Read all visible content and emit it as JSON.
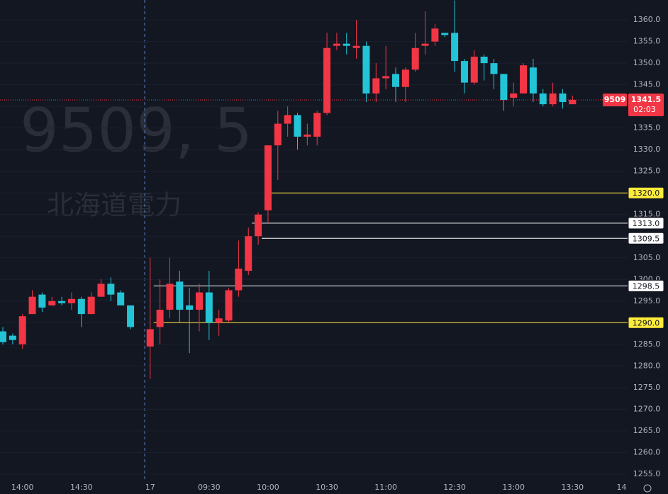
{
  "chart_data": {
    "type": "candlestick",
    "watermark": "9509, 5",
    "watermark_name": "北海道電力",
    "categories": [
      null,
      null,
      "14:00",
      null,
      null,
      null,
      null,
      null,
      "14:30",
      null,
      null,
      null,
      null,
      null,
      null,
      "17",
      null,
      null,
      null,
      null,
      null,
      "09:30",
      null,
      null,
      null,
      null,
      null,
      "10:00",
      null,
      null,
      null,
      null,
      null,
      "10:30",
      null,
      null,
      null,
      null,
      null,
      "11:00",
      null,
      null,
      null,
      null,
      null,
      null,
      "12:30",
      null,
      null,
      null,
      null,
      null,
      "13:00",
      null,
      null,
      null,
      null,
      null,
      "13:30",
      null,
      null,
      null,
      null,
      "14"
    ],
    "open": [
      1288,
      1287,
      1285,
      1292,
      1296.5,
      1294,
      1295,
      1294.5,
      1295.5,
      1292,
      1296,
      1299,
      1297,
      1294,
      null,
      1284.5,
      1289,
      1293,
      1299.5,
      1294,
      1293,
      1297,
      1290,
      1290.5,
      1297.5,
      1302,
      1310,
      1316,
      1331,
      1336,
      1338,
      1333,
      1333,
      1338.5,
      1354,
      1354.5,
      1353.5,
      1354,
      1343,
      1346.5,
      1347.5,
      1344.5,
      1348.5,
      1354,
      1355,
      1357,
      1357,
      1350.5,
      1345.5,
      1351.5,
      1350,
      1347.5,
      1342,
      1343,
      1349,
      1343,
      1340.5,
      1343,
      1340.5,
      null,
      null,
      null,
      null,
      null
    ],
    "high": [
      1289,
      1287.5,
      1292,
      1297.5,
      1297,
      1296,
      1296,
      1297,
      1296,
      1297,
      1300,
      1300.5,
      1297.5,
      1294,
      null,
      1305,
      1300,
      1305,
      1302,
      1298,
      1299,
      1302,
      1293,
      1298,
      1309,
      1312,
      1315.5,
      1331,
      1339,
      1340,
      1338.5,
      1336,
      1339,
      1357,
      1357,
      1357,
      1360,
      1355,
      1350,
      1354,
      1349,
      1349,
      1357,
      1362,
      1359,
      1357,
      1364.5,
      1351,
      1353,
      1352,
      1351,
      1347.5,
      1345.5,
      1350,
      1351,
      1344,
      1345.5,
      1344,
      1342.5,
      null,
      null,
      null,
      null,
      null
    ],
    "low": [
      1285,
      1285,
      1284,
      1292,
      1292.5,
      1294,
      1294,
      1293,
      1289,
      1292,
      1296,
      1295,
      1294,
      1288.5,
      null,
      1277,
      1285,
      1291,
      1290,
      1283,
      1288,
      1286,
      1287,
      1290,
      1296,
      1301,
      1308,
      1313,
      1323,
      1333,
      1330,
      1331,
      1331,
      1338,
      1353,
      1352,
      1351,
      1341,
      1341,
      1344,
      1341,
      1341,
      1348,
      1352,
      1354,
      1356,
      1348,
      1343,
      1345,
      1346,
      1344,
      1339,
      1340,
      1343,
      1341,
      1340,
      1340,
      1339.5,
      1340.5,
      null,
      null,
      null,
      null,
      null
    ],
    "close": [
      1285.5,
      1286,
      1291.5,
      1296,
      1293.5,
      1295,
      1294.5,
      1295.5,
      1292,
      1296,
      1299,
      1296.5,
      1294,
      1289,
      null,
      1288.5,
      1293,
      1299,
      1293,
      1293,
      1297,
      1290,
      1291,
      1297.5,
      1302.5,
      1310,
      1315,
      1331,
      1336,
      1338,
      1333,
      1333.5,
      1338.5,
      1353.5,
      1354.5,
      1354,
      1354,
      1343,
      1346.5,
      1347,
      1344.5,
      1348.5,
      1353.5,
      1354.5,
      1358,
      1356.5,
      1350.5,
      1345.5,
      1351.5,
      1350,
      1347.5,
      1341.5,
      1343,
      1349.5,
      1343,
      1340.5,
      1343,
      1341,
      1341.5,
      null,
      null,
      null,
      null,
      null
    ],
    "up_color": "#f23645",
    "down_color": "#22c4d6",
    "ylim": [
      1250.4,
      1364.6
    ],
    "yticks": [
      {
        "value": 1255,
        "label": "1255.0"
      },
      {
        "value": 1260,
        "label": "1260.0"
      },
      {
        "value": 1265,
        "label": "1265.0"
      },
      {
        "value": 1270,
        "label": "1270.0"
      },
      {
        "value": 1275,
        "label": "1275.0"
      },
      {
        "value": 1280,
        "label": "1280.0"
      },
      {
        "value": 1285,
        "label": "1285.0"
      },
      {
        "value": 1290,
        "label": "1290.0"
      },
      {
        "value": 1295,
        "label": "1295.0"
      },
      {
        "value": 1300,
        "label": "1300.0"
      },
      {
        "value": 1305,
        "label": "1305.0"
      },
      {
        "value": 1310,
        "label": "1310.0"
      },
      {
        "value": 1315,
        "label": "1315.0"
      },
      {
        "value": 1320,
        "label": "1320.0"
      },
      {
        "value": 1325,
        "label": "1325.0"
      },
      {
        "value": 1330,
        "label": "1330.0"
      },
      {
        "value": 1335,
        "label": "1335.0"
      },
      {
        "value": 1340,
        "label": "1340.0"
      },
      {
        "value": 1345,
        "label": "1345.0"
      },
      {
        "value": 1350,
        "label": "1350.0"
      },
      {
        "value": 1355,
        "label": "1355.0"
      },
      {
        "value": 1360,
        "label": "1360.0"
      }
    ],
    "grid": true,
    "levels": [
      {
        "value": 1320,
        "label": "1320.0",
        "color": "#ffeb3b",
        "start": 27
      },
      {
        "value": 1313,
        "label": "1313.0",
        "color": "#ffffff",
        "start": 25
      },
      {
        "value": 1309.5,
        "label": "1309.5",
        "color": "#ffffff",
        "start": 26
      },
      {
        "value": 1298.5,
        "label": "1298.5",
        "color": "#ffffff",
        "start": 15
      },
      {
        "value": 1290,
        "label": "1290.0",
        "color": "#ffeb3b",
        "start": 15
      }
    ],
    "last_price": {
      "value": 1341.5,
      "label": "1341.5"
    },
    "symbol_tag": "9509",
    "countdown": "02:03"
  }
}
